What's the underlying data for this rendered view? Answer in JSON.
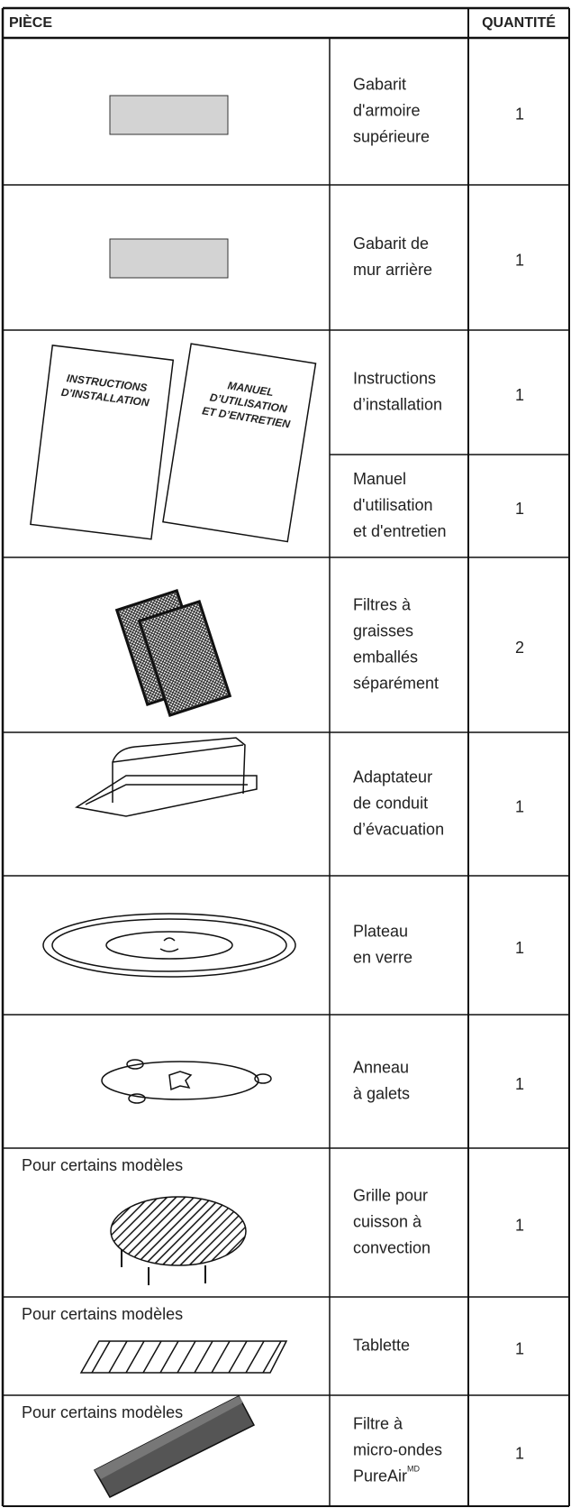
{
  "header": {
    "part": "PIÈCE",
    "quantity": "QUANTITÉ"
  },
  "covers": {
    "installation": [
      "INSTRUCTIONS",
      "D’INSTALLATION"
    ],
    "manual": [
      "MANUEL",
      "D’UTILISATION",
      "ET D’ENTRETIEN"
    ]
  },
  "rows": [
    {
      "description": [
        "Gabarit",
        "d'armoire",
        "supérieure"
      ],
      "quantity": "1"
    },
    {
      "description": [
        "Gabarit de",
        "mur arrière"
      ],
      "quantity": "1"
    },
    {
      "description": [
        "Instructions",
        "d’installation"
      ],
      "quantity": "1"
    },
    {
      "description": [
        "Manuel",
        "d'utilisation",
        "et d'entretien"
      ],
      "quantity": "1"
    },
    {
      "description": [
        "Filtres à",
        "graisses",
        "emballés",
        "séparément"
      ],
      "quantity": "2"
    },
    {
      "description": [
        "Adaptateur",
        "de conduit",
        "d’évacuation"
      ],
      "quantity": "1"
    },
    {
      "description": [
        "Plateau",
        "en verre"
      ],
      "quantity": "1"
    },
    {
      "description": [
        "Anneau",
        "à galets"
      ],
      "quantity": "1"
    },
    {
      "note": "Pour certains modèles",
      "description": [
        "Grille pour",
        "cuisson à",
        "convection"
      ],
      "quantity": "1"
    },
    {
      "note": "Pour certains modèles",
      "description": [
        "Tablette"
      ],
      "quantity": "1"
    },
    {
      "note": "Pour certains modèles",
      "description": [
        "Filtre à",
        "micro-ondes",
        "PureAir"
      ],
      "superscript": "MD",
      "quantity": "1"
    }
  ]
}
